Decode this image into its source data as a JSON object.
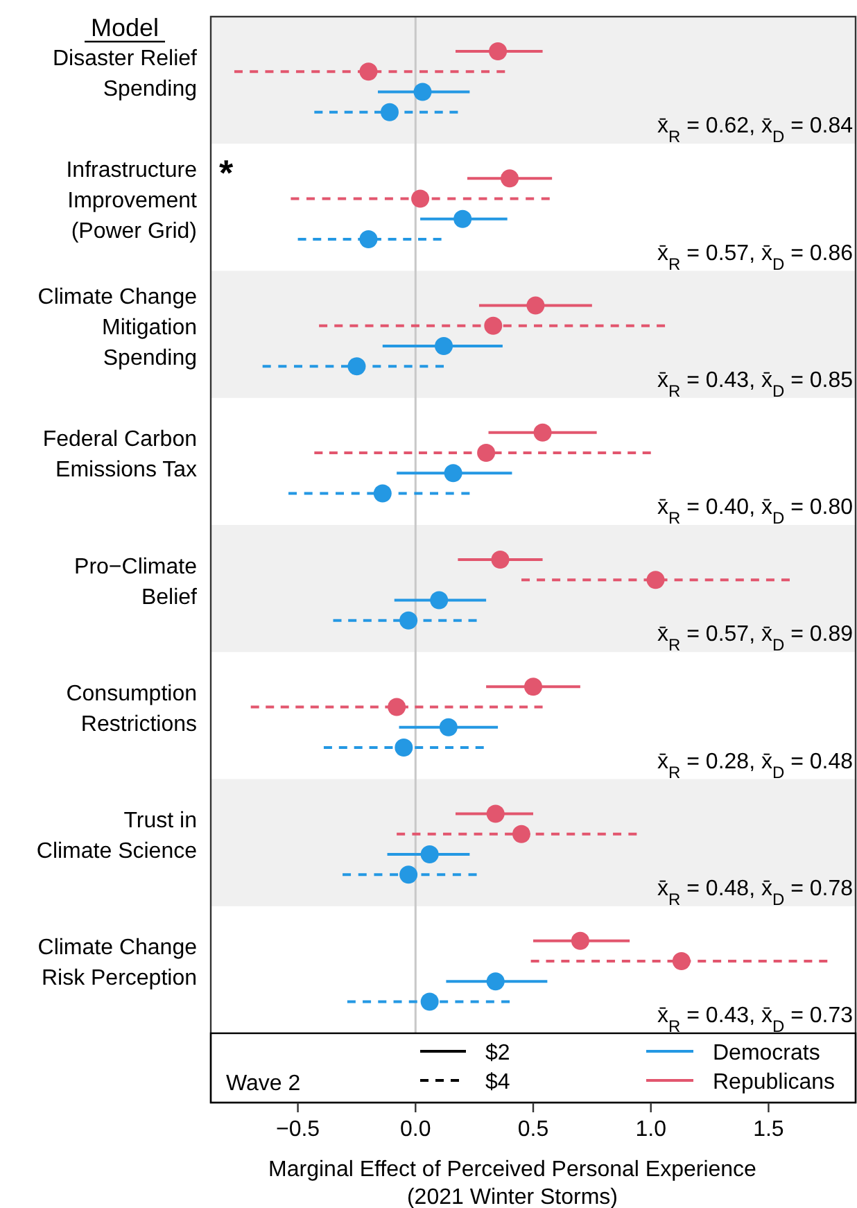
{
  "chart_data": {
    "type": "scatter",
    "orientation": "horizontal",
    "ylabel": "Model",
    "xlabel": "Marginal Effect of Perceived Personal Experience\n(2021 Winter Storms)",
    "legend_title": "Wave 2",
    "legend": "bottom",
    "marker": "circle",
    "categories": [
      "Disaster Relief\nSpending",
      "Infrastructure\nImprovement\n(Power Grid)",
      "Climate Change\nMitigation\nSpending",
      "Federal Carbon\nEmissions Tax",
      "Pro−Climate\nBelief",
      "Consumption\nRestrictions",
      "Trust in\nClimate Science",
      "Climate Change\nRisk Perception"
    ],
    "xlim": [
      -0.87,
      1.87
    ],
    "xticks": [
      {
        "value": -0.5,
        "label": "−0.5"
      },
      {
        "value": 0,
        "label": "0.0"
      },
      {
        "value": 0.5,
        "label": "0.5"
      },
      {
        "value": 1,
        "label": "1.0"
      },
      {
        "value": 1.5,
        "label": "1.5"
      }
    ],
    "ref_lines": [
      {
        "axis": "x",
        "value": 0,
        "color": "#c8c8c8"
      }
    ],
    "bands": [
      {
        "axis": "y",
        "from": "Disaster Relief\nSpending",
        "to": "Disaster Relief\nSpending",
        "color": "#f0f0f0"
      },
      {
        "axis": "y",
        "from": "Climate Change\nMitigation\nSpending",
        "to": "Climate Change\nMitigation\nSpending",
        "color": "#f0f0f0"
      },
      {
        "axis": "y",
        "from": "Pro−Climate\nBelief",
        "to": "Pro−Climate\nBelief",
        "color": "#f0f0f0"
      },
      {
        "axis": "y",
        "from": "Trust in\nClimate Science",
        "to": "Trust in\nClimate Science",
        "color": "#f0f0f0"
      }
    ],
    "series": [
      {
        "name": "Republicans",
        "color": "#e2566e",
        "line_style": "solid",
        "values": [
          0.35,
          0.4,
          0.51,
          0.54,
          0.36,
          0.5,
          0.34,
          0.7
        ],
        "errors": [
          [
            0.17,
            0.54
          ],
          [
            0.22,
            0.58
          ],
          [
            0.27,
            0.75
          ],
          [
            0.31,
            0.77
          ],
          [
            0.18,
            0.54
          ],
          [
            0.3,
            0.7
          ],
          [
            0.17,
            0.5
          ],
          [
            0.5,
            0.91
          ]
        ]
      },
      {
        "color": "#e2566e",
        "line_style": "dashed",
        "values": [
          -0.2,
          0.02,
          0.33,
          0.3,
          1.02,
          -0.08,
          0.45,
          1.13
        ],
        "errors": [
          [
            -0.77,
            0.38
          ],
          [
            -0.53,
            0.57
          ],
          [
            -0.41,
            1.06
          ],
          [
            -0.43,
            1.0
          ],
          [
            0.45,
            1.59
          ],
          [
            -0.7,
            0.54
          ],
          [
            -0.08,
            0.94
          ],
          [
            0.49,
            1.75
          ]
        ]
      },
      {
        "name": "Democrats",
        "color": "#2498e3",
        "line_style": "solid",
        "values": [
          0.03,
          0.2,
          0.12,
          0.16,
          0.1,
          0.14,
          0.06,
          0.34
        ],
        "errors": [
          [
            -0.16,
            0.23
          ],
          [
            0.02,
            0.39
          ],
          [
            -0.14,
            0.37
          ],
          [
            -0.08,
            0.41
          ],
          [
            -0.09,
            0.3
          ],
          [
            -0.07,
            0.35
          ],
          [
            -0.12,
            0.23
          ],
          [
            0.13,
            0.56
          ]
        ]
      },
      {
        "color": "#2498e3",
        "line_style": "dashed",
        "values": [
          -0.11,
          -0.2,
          -0.25,
          -0.14,
          -0.03,
          -0.05,
          -0.03,
          0.06
        ],
        "errors": [
          [
            -0.43,
            0.18
          ],
          [
            -0.5,
            0.11
          ],
          [
            -0.65,
            0.12
          ],
          [
            -0.54,
            0.23
          ],
          [
            -0.35,
            0.26
          ],
          [
            -0.39,
            0.29
          ],
          [
            -0.31,
            0.26
          ],
          [
            -0.29,
            0.4
          ]
        ]
      }
    ],
    "annotations": [
      "$2",
      "$4",
      "*",
      "x̄$_{R}$ = 0.62, x̄$_{D}$ = 0.84",
      "x̄$_{R}$ = 0.57, x̄$_{D}$ = 0.86",
      "x̄$_{R}$ = 0.43, x̄$_{D}$ = 0.85",
      "x̄$_{R}$ = 0.40, x̄$_{D}$ = 0.80",
      "x̄$_{R}$ = 0.57, x̄$_{D}$ = 0.89",
      "x̄$_{R}$ = 0.28, x̄$_{D}$ = 0.48",
      "x̄$_{R}$ = 0.48, x̄$_{D}$ = 0.78",
      "x̄$_{R}$ = 0.43, x̄$_{D}$ = 0.73"
    ]
  }
}
